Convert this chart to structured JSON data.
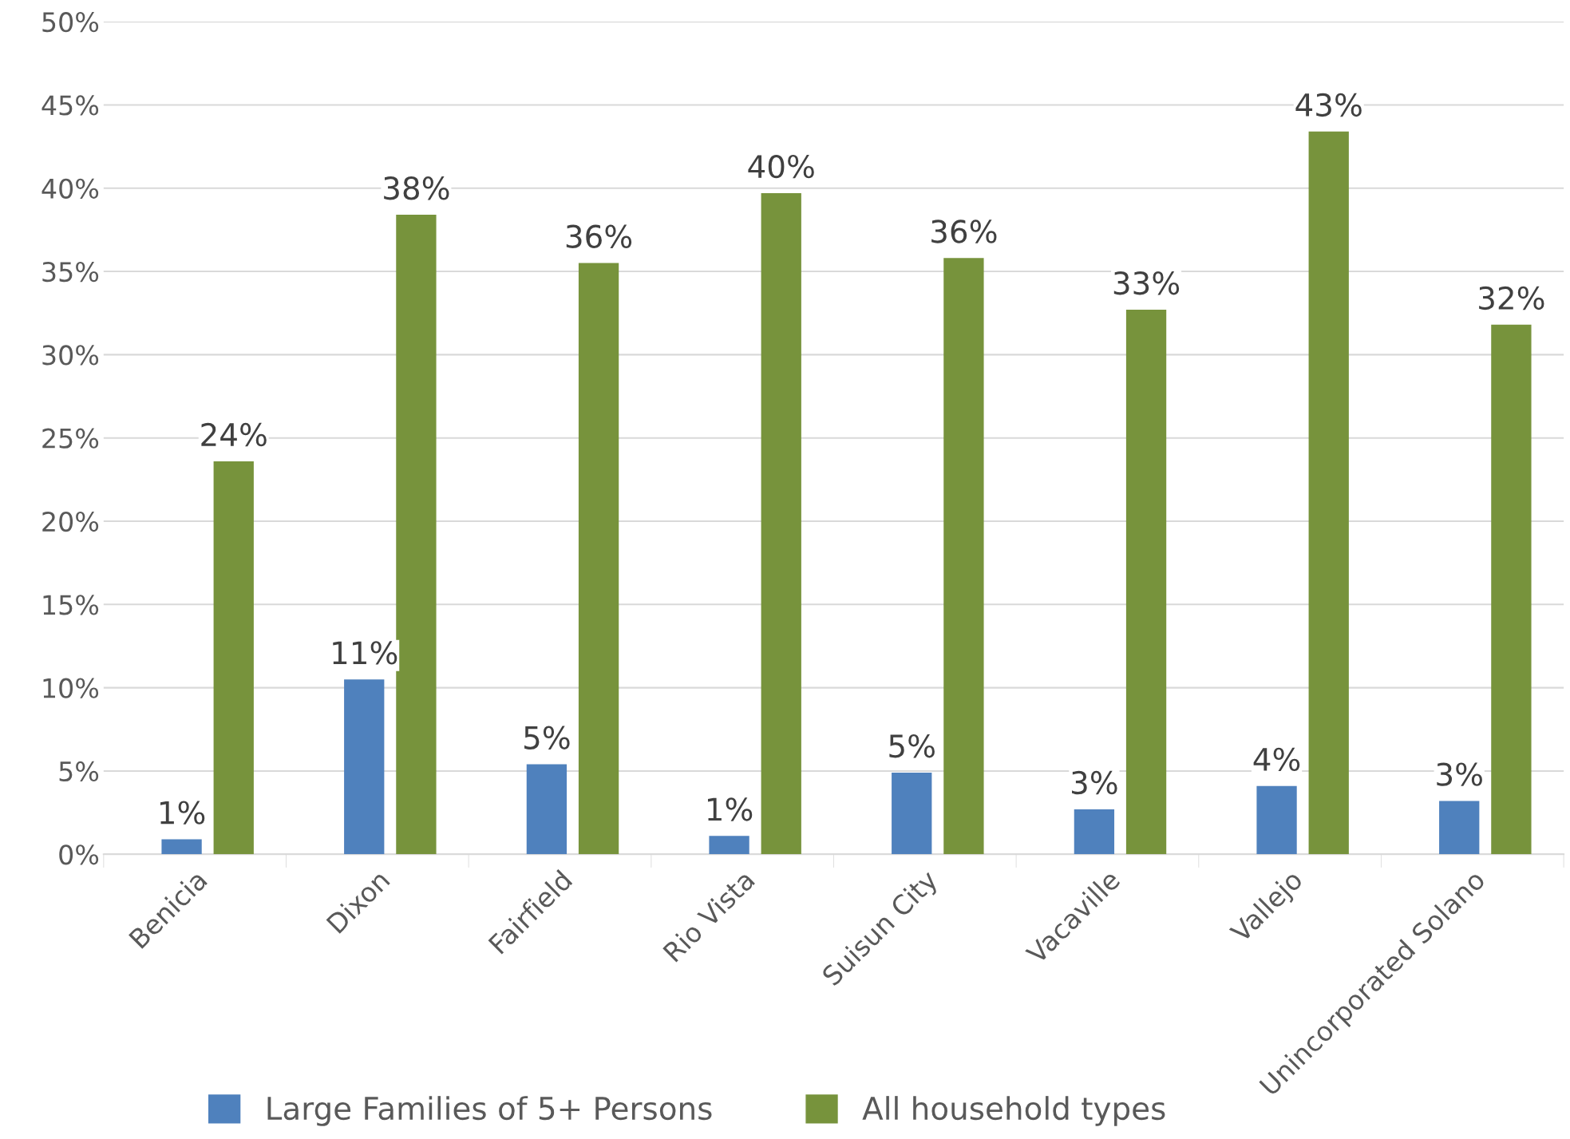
{
  "chart_data": {
    "type": "bar",
    "categories": [
      "Benicia",
      "Dixon",
      "Fairfield",
      "Rio Vista",
      "Suisun City",
      "Vacaville",
      "Vallejo",
      "Unincorporated Solano"
    ],
    "series": [
      {
        "name": "Large Families of 5+ Persons",
        "color": "#4f81bd",
        "values": [
          0.9,
          10.5,
          5.4,
          1.1,
          4.9,
          2.7,
          4.1,
          3.2
        ],
        "value_labels": [
          "1%",
          "11%",
          "5%",
          "1%",
          "5%",
          "3%",
          "4%",
          "3%"
        ]
      },
      {
        "name": "All household types",
        "color": "#77933c",
        "values": [
          23.6,
          38.4,
          35.5,
          39.7,
          35.8,
          32.7,
          43.4,
          31.8
        ],
        "value_labels": [
          "24%",
          "38%",
          "36%",
          "40%",
          "36%",
          "33%",
          "43%",
          "32%"
        ]
      }
    ],
    "ylim": [
      0,
      50
    ],
    "yticks": [
      {
        "value": 0,
        "label": "0%"
      },
      {
        "value": 5,
        "label": "5%"
      },
      {
        "value": 10,
        "label": "10%"
      },
      {
        "value": 15,
        "label": "15%"
      },
      {
        "value": 20,
        "label": "20%"
      },
      {
        "value": 25,
        "label": "25%"
      },
      {
        "value": 30,
        "label": "30%"
      },
      {
        "value": 35,
        "label": "35%"
      },
      {
        "value": 40,
        "label": "40%"
      },
      {
        "value": 45,
        "label": "45%"
      },
      {
        "value": 50,
        "label": "50%"
      }
    ],
    "grid": "y",
    "legend": "bottom"
  }
}
